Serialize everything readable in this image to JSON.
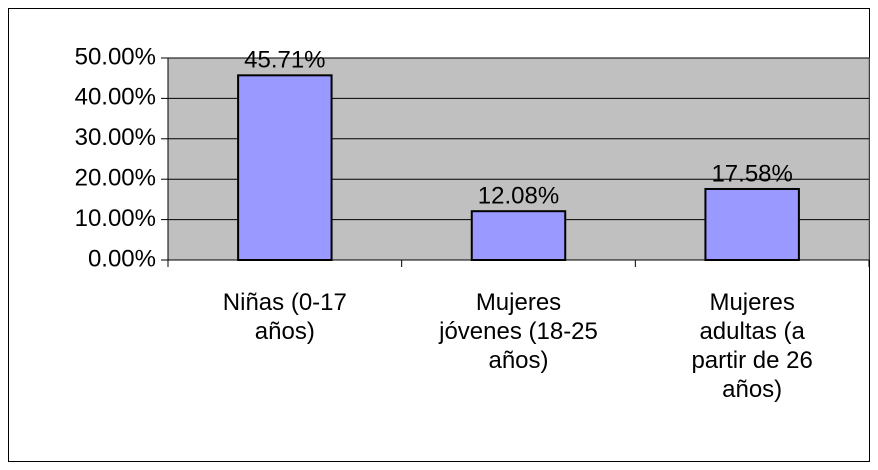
{
  "chart_data": {
    "type": "bar",
    "categories": [
      "Niñas (0-17 años)",
      "Mujeres jóvenes (18-25 años)",
      "Mujeres adultas (a partir de 26 años)"
    ],
    "values": [
      45.71,
      12.08,
      17.58
    ],
    "value_labels": [
      "45.71%",
      "12.08%",
      "17.58%"
    ],
    "color": "#9999ff",
    "ylim": [
      0,
      50
    ],
    "yticks": [
      {
        "value": 0,
        "label": "0.00%"
      },
      {
        "value": 10,
        "label": "10.00%"
      },
      {
        "value": 20,
        "label": "20.00%"
      },
      {
        "value": 30,
        "label": "30.00%"
      },
      {
        "value": 40,
        "label": "40.00%"
      },
      {
        "value": 50,
        "label": "50.00%"
      }
    ],
    "grid": true
  }
}
